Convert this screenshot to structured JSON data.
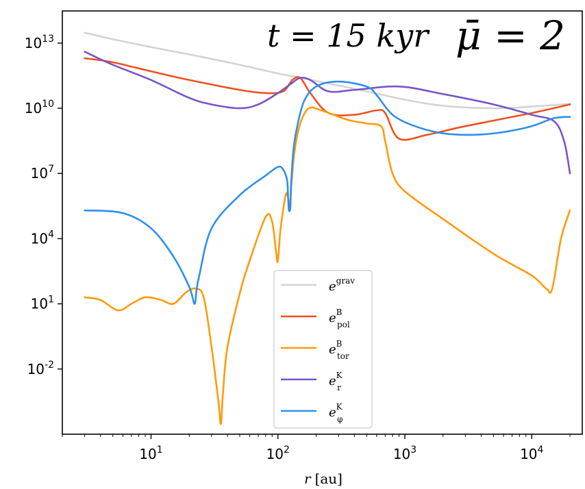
{
  "chart_data": {
    "type": "line",
    "title": "",
    "annotations": {
      "time_label": "t = 15 kyr",
      "mu_label": "μ̄ = 2"
    },
    "xlabel": {
      "var": "r",
      "unit": "[au]"
    },
    "ylabel": "",
    "xscale": "log",
    "yscale": "log",
    "xlim": [
      2.0,
      25000
    ],
    "ylim": [
      1e-05,
      300000000000000.0
    ],
    "x_ticks": [
      {
        "base": "10",
        "exp": "1",
        "value": 10
      },
      {
        "base": "10",
        "exp": "2",
        "value": 100
      },
      {
        "base": "10",
        "exp": "3",
        "value": 1000
      },
      {
        "base": "10",
        "exp": "4",
        "value": 10000
      }
    ],
    "y_ticks": [
      {
        "base": "10",
        "exp": "13",
        "value": 10000000000000.0
      },
      {
        "base": "10",
        "exp": "10",
        "value": 10000000000.0
      },
      {
        "base": "10",
        "exp": "7",
        "value": 10000000.0
      },
      {
        "base": "10",
        "exp": "4",
        "value": 10000.0
      },
      {
        "base": "10",
        "exp": "1",
        "value": 10
      },
      {
        "base": "10",
        "exp": "-2",
        "value": 0.01
      }
    ],
    "grid": false,
    "legend_position": "lower-center",
    "series": [
      {
        "name": "e^grav",
        "legend": {
          "base": "e",
          "sup": "grav",
          "sub": ""
        },
        "color": "#d3d3d3",
        "x": [
          3,
          5,
          10,
          20,
          50,
          100,
          200,
          500,
          1000,
          2000,
          5000,
          10000,
          20000
        ],
        "y": [
          30000000000000.0,
          15000000000000.0,
          6500000000000.0,
          3000000000000.0,
          1000000000000.0,
          400000000000.0,
          180000000000.0,
          60000000000.0,
          25000000000.0,
          13000000000.0,
          10000000000.0,
          12000000000.0,
          16000000000.0
        ]
      },
      {
        "name": "e^B_pol",
        "legend": {
          "base": "e",
          "sup": "B",
          "sub": "pol"
        },
        "color": "#f0501e",
        "x": [
          3,
          5,
          10,
          20,
          50,
          80,
          110,
          130,
          150,
          180,
          250,
          400,
          600,
          700,
          900,
          1500,
          3000,
          10000,
          20000
        ],
        "y": [
          2000000000000.0,
          1300000000000.0,
          500000000000.0,
          200000000000.0,
          70000000000.0,
          50000000000.0,
          60000000000.0,
          200000000000.0,
          250000000000.0,
          50000000000.0,
          6000000000.0,
          5000000000.0,
          8000000000.0,
          6000000000.0,
          400000000.0,
          600000000.0,
          1500000000.0,
          6000000000.0,
          15000000000.0
        ]
      },
      {
        "name": "e^B_tor",
        "legend": {
          "base": "e",
          "sup": "B",
          "sub": "tor"
        },
        "color": "#ff9a0a",
        "x": [
          3,
          4,
          5.5,
          7,
          9,
          12,
          15,
          19,
          22.5,
          26,
          30,
          34,
          35.5,
          37,
          40,
          50,
          60,
          80,
          90,
          97,
          100,
          105,
          115,
          120,
          125,
          127,
          135,
          150,
          175,
          220,
          350,
          500,
          650,
          700,
          800,
          1000,
          2000,
          5000,
          10000,
          13000,
          14500,
          17000,
          20000
        ],
        "y": [
          20,
          15,
          5,
          10,
          20,
          15,
          10,
          35,
          50,
          20,
          0.1,
          0.0003,
          3e-05,
          0.001,
          0.1,
          30,
          1000,
          100000,
          60000,
          2000,
          1000,
          30000,
          1000000,
          800000,
          200000,
          2000000,
          100000000,
          2000000000.0,
          10000000000.0,
          8000000000.0,
          3000000000.0,
          2000000000.0,
          1500000000.0,
          300000000.0,
          10000000.0,
          1500000,
          80000,
          2000,
          200,
          50,
          50,
          10000,
          200000
        ]
      },
      {
        "name": "e^K_r",
        "legend": {
          "base": "e",
          "sup": "K",
          "sub": "r"
        },
        "color": "#7755c8",
        "x": [
          3,
          5,
          10,
          20,
          30,
          50,
          70,
          100,
          130,
          150,
          180,
          250,
          400,
          900,
          2000,
          5000,
          10000,
          15000,
          18000,
          20000
        ],
        "y": [
          4000000000000.0,
          1000000000000.0,
          200000000000.0,
          30000000000.0,
          15000000000.0,
          10000000000.0,
          15000000000.0,
          50000000000.0,
          150000000000.0,
          250000000000.0,
          200000000000.0,
          60000000000.0,
          70000000000.0,
          100000000000.0,
          45000000000.0,
          15000000000.0,
          5000000000.0,
          2500000000.0,
          300000000.0,
          10000000.0
        ]
      },
      {
        "name": "e^K_phi",
        "legend": {
          "base": "e",
          "sup": "K",
          "sub": "φ"
        },
        "color": "#2e8fea",
        "x": [
          3,
          6,
          10,
          15,
          20,
          22,
          22.8,
          24,
          30,
          50,
          80,
          100,
          110,
          118,
          120,
          122,
          125,
          127,
          132,
          140,
          160,
          200,
          300,
          500,
          600,
          800,
          1200,
          2000,
          3500,
          6000,
          10000,
          15000,
          20000
        ],
        "y": [
          200000,
          150000,
          30000,
          1500,
          60,
          10,
          40,
          200,
          30000,
          1000000,
          8000000,
          20000000,
          15000000,
          5000000,
          1000000,
          200000,
          300000,
          3000000,
          100000000,
          1000000000.0,
          20000000000.0,
          100000000000.0,
          170000000000.0,
          100000000000.0,
          40000000000.0,
          5000000000.0,
          1500000000.0,
          700000000.0,
          600000000.0,
          800000000.0,
          1500000000.0,
          3500000000.0,
          4000000000.0
        ]
      }
    ]
  }
}
